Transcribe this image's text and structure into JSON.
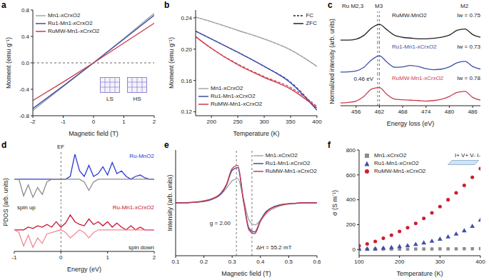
{
  "chart_data": [
    {
      "panel": "a",
      "type": "line",
      "x_label": "Magnetic field (T)",
      "y_label": "Moment (emu g⁻¹)",
      "x": [
        -2,
        -1,
        0,
        1,
        2
      ],
      "series": [
        {
          "name": "Mn1-xCrxO2",
          "color": "#a3a6ad",
          "values": [
            -0.72,
            -0.36,
            0,
            0.37,
            0.75
          ]
        },
        {
          "name": "Ru1-Mn1-xCrxO2",
          "color": "#3f4fa6",
          "values": [
            -0.69,
            -0.35,
            0,
            0.36,
            0.72
          ]
        },
        {
          "name": "RuMW-Mn1-xCrxO2",
          "color": "#cc3b4b",
          "values": [
            -0.57,
            -0.29,
            0,
            0.3,
            0.6
          ]
        }
      ],
      "xlim": [
        -2,
        2
      ],
      "xticks": [
        -2,
        -1,
        0,
        1,
        2
      ],
      "ylim": [
        -0.8,
        0.8
      ],
      "yticks": [
        -0.8,
        -0.4,
        {
          "value": 0,
          "label": "0.0"
        },
        0.4,
        0.8
      ],
      "hlines": [
        0
      ],
      "legend": "upper left",
      "annotations": [
        "LS",
        "HS"
      ]
    },
    {
      "panel": "b",
      "type": "line",
      "x_label": "Temperature (K)",
      "y_label": "Moment (emu g⁻¹)",
      "x": [
        170,
        200,
        250,
        300,
        350,
        400
      ],
      "series": [
        {
          "name": "Mn1-xCrxO2",
          "color": "#a3a6ad",
          "values": [
            0.241,
            0.235,
            0.224,
            0.213,
            0.199,
            0.178
          ],
          "fc_values": [
            0.241,
            0.235,
            0.224,
            0.213,
            0.199,
            0.178
          ]
        },
        {
          "name": "Ru1-Mn1-xCrxO2",
          "color": "#3f4fa6",
          "values": [
            0.223,
            0.213,
            0.196,
            0.178,
            0.157,
            0.122
          ],
          "fc_values": [
            0.223,
            0.213,
            0.196,
            0.178,
            0.158,
            0.123
          ]
        },
        {
          "name": "RuMW-Mn1-xCrxO2",
          "color": "#cc3b4b",
          "values": [
            0.216,
            0.201,
            0.18,
            0.164,
            0.149,
            0.125
          ],
          "fc_values": [
            0.216,
            0.201,
            0.181,
            0.165,
            0.151,
            0.127
          ]
        }
      ],
      "line_styles": [
        {
          "name": "FC",
          "line_style": "dashed"
        },
        {
          "name": "ZFC",
          "line_style": "solid"
        }
      ],
      "xlim": [
        170,
        400
      ],
      "xticks": [
        200,
        250,
        300,
        350,
        400
      ],
      "ylim": [
        0.115,
        0.25
      ],
      "yticks": [
        0.12,
        0.16,
        {
          "value": 0.2,
          "label": "0.20"
        },
        0.24
      ],
      "legend": "lower left"
    },
    {
      "panel": "c",
      "type": "line",
      "x_label": "Energy loss (eV)",
      "y_label": "Normalized intensity (arb. units)",
      "x": [
        452,
        454,
        456,
        458,
        460,
        462,
        464,
        466,
        468,
        470,
        472,
        474,
        476,
        478,
        480,
        482,
        484,
        486,
        488
      ],
      "xlim": [
        452,
        488
      ],
      "xticks": [
        456,
        462,
        468,
        474,
        480,
        486
      ],
      "ylim": [
        0,
        1.7
      ],
      "tick_labels": "x",
      "vlines": [
        462,
        461.54
      ],
      "annotations": [
        "Ru M2,3",
        "M3",
        "M2",
        "0.46 eV"
      ],
      "subplots": [
        {
          "name": "RuMW-MnO2",
          "annotation": "Iw = 0.75",
          "series": [
            {
              "color": "#222222",
              "values": [
                0.15,
                0.15,
                0.2,
                0.4,
                0.8,
                1.0,
                0.7,
                0.4,
                0.3,
                0.26,
                0.22,
                0.22,
                0.25,
                0.3,
                0.42,
                0.68,
                0.75,
                0.45,
                0.3
              ]
            }
          ]
        },
        {
          "name": "Ru1-Mn1-xCrxO2",
          "annotation": "Iw = 0.73",
          "series": [
            {
              "color": "#3f4fa6",
              "values": [
                0.12,
                0.13,
                0.18,
                0.38,
                0.78,
                1.0,
                0.65,
                0.38,
                0.4,
                0.48,
                0.42,
                0.3,
                0.25,
                0.28,
                0.4,
                0.62,
                0.7,
                0.42,
                0.28
              ]
            }
          ]
        },
        {
          "name": "RuMW-Mn1-xCrxO2",
          "annotation": "Iw = 0.78",
          "series": [
            {
              "color": "#cc3b4b",
              "values": [
                0.15,
                0.18,
                0.25,
                0.5,
                0.9,
                0.98,
                0.6,
                0.35,
                0.32,
                0.3,
                0.28,
                0.25,
                0.28,
                0.35,
                0.5,
                0.72,
                0.78,
                0.45,
                0.3
              ]
            }
          ]
        }
      ]
    },
    {
      "panel": "d",
      "type": "line",
      "x_label": "Energy (eV)",
      "y_label": "PDOS (arb. units)",
      "x": [
        -1,
        -0.9,
        -0.8,
        -0.7,
        -0.6,
        -0.5,
        -0.4,
        -0.3,
        -0.2,
        -0.1,
        0,
        0.1,
        0.2,
        0.3,
        0.4,
        0.5,
        0.6,
        0.7,
        0.8,
        0.9,
        1,
        1.1,
        1.2,
        1.3,
        1.4,
        1.5,
        1.6,
        1.7,
        1.8,
        1.9,
        2
      ],
      "xlim": [
        -1,
        2
      ],
      "xticks": [
        -1,
        0,
        1,
        2
      ],
      "ylim": [
        -0.8,
        1.0
      ],
      "tick_labels": "x",
      "vlines": [
        0
      ],
      "annotations": [
        "EF",
        "spin up",
        "spin down"
      ],
      "subplots": [
        {
          "name": "Ru-MnO2",
          "series": [
            {
              "color": "#2a3bd6",
              "values": [
                0,
                0,
                0,
                0,
                0,
                0,
                0,
                0,
                0,
                0,
                0,
                0,
                0.1,
                0.9,
                0.3,
                0.1,
                0.5,
                0.1,
                0.2,
                0.45,
                0.15,
                0.6,
                0.2,
                0.3,
                0.1,
                0,
                0.1,
                0.15,
                0.05,
                0,
                0
              ]
            },
            {
              "color": "#8c8c8c",
              "values": [
                0,
                0,
                -0.6,
                -0.2,
                -0.65,
                -0.3,
                -0.55,
                -0.1,
                0,
                0,
                0,
                0,
                0,
                0,
                0,
                -0.1,
                -0.4,
                -0.1,
                0,
                0,
                0,
                0,
                0,
                0,
                0,
                0,
                0,
                0,
                0,
                0,
                0
              ]
            }
          ]
        },
        {
          "name": "Ru-Mn1-xCrxO2",
          "series": [
            {
              "color": "#c8102e",
              "values": [
                0,
                0,
                0,
                0.1,
                0.05,
                0.15,
                0.1,
                0.2,
                0.1,
                0.3,
                0.1,
                0.25,
                0.55,
                0.3,
                0.2,
                0.15,
                0.4,
                0.2,
                0.3,
                0.15,
                0.3,
                0.1,
                0.25,
                0.1,
                0,
                0.15,
                0,
                0.1,
                0,
                0,
                0
              ]
            },
            {
              "color": "#f08a9a",
              "values": [
                0,
                -0.1,
                -0.6,
                -0.2,
                -0.65,
                -0.3,
                -0.5,
                -0.15,
                -0.1,
                -0.05,
                0,
                -0.1,
                -0.3,
                -0.15,
                0,
                -0.1,
                -0.3,
                -0.1,
                0,
                0,
                0,
                0,
                0,
                0,
                0,
                0,
                0,
                0,
                0,
                0,
                0
              ]
            }
          ]
        }
      ]
    },
    {
      "panel": "e",
      "type": "line",
      "x_label": "Magnetic field (T)",
      "y_label": "Intensity (arb. units)",
      "x": [
        0.1,
        0.12,
        0.14,
        0.16,
        0.18,
        0.2,
        0.22,
        0.24,
        0.26,
        0.28,
        0.3,
        0.32,
        0.34,
        0.36,
        0.38,
        0.4,
        0.42,
        0.44,
        0.46,
        0.48,
        0.5,
        0.52,
        0.54,
        0.56,
        0.58,
        0.6
      ],
      "series": [
        {
          "name": "Mn1-xCrxO2",
          "color": "#a3a6ad",
          "values": [
            0,
            0,
            0.01,
            0.02,
            0.03,
            0.05,
            0.08,
            0.13,
            0.2,
            0.33,
            0.5,
            0.55,
            0.1,
            -0.4,
            -0.5,
            -0.4,
            -0.25,
            -0.15,
            -0.09,
            -0.05,
            -0.03,
            -0.02,
            -0.01,
            0,
            0,
            0
          ]
        },
        {
          "name": "Ru1-Mn1-xCrxO2",
          "color": "#3f4fa6",
          "values": [
            0,
            0,
            0,
            0.01,
            0.02,
            0.03,
            0.06,
            0.11,
            0.2,
            0.4,
            0.74,
            0.8,
            0.05,
            -0.58,
            -0.66,
            -0.4,
            -0.2,
            -0.11,
            -0.06,
            -0.03,
            -0.02,
            -0.01,
            0,
            0,
            0,
            0
          ]
        },
        {
          "name": "RuMW-Mn1-xCrxO2",
          "color": "#cc3b4b",
          "values": [
            0,
            0,
            0,
            0.01,
            0.02,
            0.04,
            0.07,
            0.12,
            0.22,
            0.42,
            0.78,
            0.85,
            0.05,
            -0.62,
            -0.7,
            -0.42,
            -0.22,
            -0.12,
            -0.07,
            -0.04,
            -0.02,
            -0.01,
            0,
            0,
            0,
            0
          ]
        }
      ],
      "xlim": [
        0.1,
        0.6
      ],
      "xticks": [
        0.1,
        0.2,
        0.3,
        0.4,
        0.5,
        0.6
      ],
      "ylim": [
        -1.2,
        1.2
      ],
      "tick_labels": "x",
      "vlines": [
        0.315,
        0.37
      ],
      "legend": "upper right",
      "annotations": [
        "g = 2.00",
        "ΔH = 55.2 mT"
      ]
    },
    {
      "panel": "f",
      "type": "scatter",
      "x_label": "Temperature (K)",
      "y_label": "σ (S m⁻¹)",
      "x": [
        100,
        120,
        140,
        160,
        180,
        200,
        220,
        240,
        260,
        280,
        300,
        320,
        340,
        360,
        380,
        400
      ],
      "series": [
        {
          "name": "Mn1-xCrxO2",
          "color": "#8c8c8c",
          "marker": "square",
          "values": [
            2,
            2,
            2,
            3,
            3,
            3,
            3,
            4,
            4,
            4,
            5,
            5,
            5,
            6,
            6,
            7
          ]
        },
        {
          "name": "Ru1-Mn1-xCrxO2",
          "color": "#3f4fa6",
          "marker": "triangle",
          "values": [
            2,
            3,
            5,
            10,
            15,
            22,
            30,
            40,
            52,
            66,
            82,
            100,
            123,
            150,
            185,
            235
          ]
        },
        {
          "name": "RuMW-Mn1-xCrxO2",
          "color": "#cc1f2f",
          "marker": "circle",
          "values": [
            30,
            45,
            65,
            90,
            115,
            145,
            175,
            210,
            250,
            295,
            345,
            400,
            455,
            515,
            580,
            650
          ]
        }
      ],
      "xlim": [
        100,
        400
      ],
      "xticks": [
        100,
        200,
        300,
        400
      ],
      "ylim": [
        -50,
        800
      ],
      "yticks": [
        0,
        200,
        400,
        600,
        800
      ],
      "legend": "upper left",
      "annotations": [
        "I+ V+ V- I-"
      ]
    }
  ]
}
